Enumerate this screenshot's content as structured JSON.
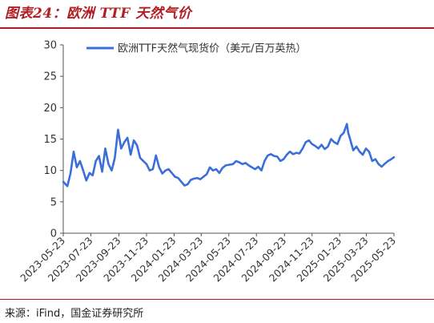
{
  "header": {
    "title": "图表24：欧洲 TTF 天然气价"
  },
  "footer": {
    "source": "来源：iFind，国金证券研究所"
  },
  "chart_data": {
    "type": "line",
    "title": "图表24：欧洲 TTF 天然气价",
    "xlabel": "",
    "ylabel": "",
    "ylim": [
      0,
      30
    ],
    "yticks": [
      0,
      5,
      10,
      15,
      20,
      25,
      30
    ],
    "xticks": [
      "2023-05-23",
      "2023-07-23",
      "2023-09-23",
      "2023-11-23",
      "2024-01-23",
      "2024-03-23",
      "2024-05-23",
      "2024-07-23",
      "2024-09-23",
      "2024-11-23",
      "2025-01-23",
      "2025-03-23",
      "2025-05-23"
    ],
    "grid": false,
    "legend": "top-right",
    "colors": {
      "series": "#3a6fd8"
    },
    "series": [
      {
        "name": "欧洲TTF天然气现货价（美元/百万英热）",
        "x": [
          "2023-05-23",
          "2023-06-01",
          "2023-06-08",
          "2023-06-15",
          "2023-06-22",
          "2023-06-29",
          "2023-07-06",
          "2023-07-13",
          "2023-07-20",
          "2023-07-27",
          "2023-08-03",
          "2023-08-10",
          "2023-08-17",
          "2023-08-24",
          "2023-08-31",
          "2023-09-07",
          "2023-09-14",
          "2023-09-21",
          "2023-09-28",
          "2023-10-05",
          "2023-10-12",
          "2023-10-19",
          "2023-10-26",
          "2023-11-02",
          "2023-11-09",
          "2023-11-16",
          "2023-11-23",
          "2023-11-30",
          "2023-12-07",
          "2023-12-14",
          "2023-12-21",
          "2023-12-28",
          "2024-01-04",
          "2024-01-11",
          "2024-01-18",
          "2024-01-25",
          "2024-02-01",
          "2024-02-08",
          "2024-02-15",
          "2024-02-22",
          "2024-02-29",
          "2024-03-07",
          "2024-03-14",
          "2024-03-21",
          "2024-03-28",
          "2024-04-04",
          "2024-04-11",
          "2024-04-18",
          "2024-04-25",
          "2024-05-02",
          "2024-05-09",
          "2024-05-16",
          "2024-05-23",
          "2024-06-01",
          "2024-06-08",
          "2024-06-15",
          "2024-06-22",
          "2024-06-29",
          "2024-07-06",
          "2024-07-13",
          "2024-07-20",
          "2024-07-27",
          "2024-08-03",
          "2024-08-10",
          "2024-08-17",
          "2024-08-24",
          "2024-08-31",
          "2024-09-07",
          "2024-09-14",
          "2024-09-21",
          "2024-09-28",
          "2024-10-05",
          "2024-10-12",
          "2024-10-19",
          "2024-10-26",
          "2024-11-02",
          "2024-11-09",
          "2024-11-16",
          "2024-11-23",
          "2024-11-30",
          "2024-12-07",
          "2024-12-14",
          "2024-12-21",
          "2024-12-28",
          "2025-01-04",
          "2025-01-11",
          "2025-01-18",
          "2025-01-25",
          "2025-02-01",
          "2025-02-08",
          "2025-02-11",
          "2025-02-15",
          "2025-02-22",
          "2025-03-01",
          "2025-03-08",
          "2025-03-15",
          "2025-03-22",
          "2025-03-29",
          "2025-04-05",
          "2025-04-12",
          "2025-04-19",
          "2025-04-26",
          "2025-05-03",
          "2025-05-10",
          "2025-05-17",
          "2025-05-23"
        ],
        "values": [
          8.2,
          7.5,
          9.5,
          13.0,
          10.5,
          11.5,
          10.0,
          8.4,
          9.6,
          9.2,
          11.5,
          12.3,
          9.8,
          13.5,
          11.0,
          10.0,
          12.0,
          16.5,
          13.5,
          14.5,
          15.2,
          12.5,
          14.8,
          14.0,
          12.0,
          11.5,
          11.0,
          10.0,
          10.2,
          12.4,
          10.5,
          9.5,
          10.0,
          10.2,
          9.6,
          9.0,
          8.8,
          8.2,
          7.6,
          7.8,
          8.5,
          8.7,
          8.8,
          8.6,
          9.0,
          9.4,
          10.5,
          10.0,
          10.2,
          9.6,
          10.4,
          10.8,
          10.9,
          11.0,
          11.5,
          11.3,
          11.0,
          11.2,
          10.8,
          10.5,
          10.2,
          10.6,
          10.0,
          11.5,
          12.4,
          12.6,
          12.3,
          12.2,
          11.5,
          11.8,
          12.5,
          13.0,
          12.6,
          12.8,
          12.7,
          13.5,
          14.5,
          14.8,
          14.2,
          13.9,
          13.5,
          14.1,
          13.4,
          13.8,
          15.0,
          14.5,
          14.2,
          15.5,
          16.0,
          17.4,
          16.0,
          15.0,
          13.2,
          13.8,
          13.0,
          12.5,
          13.5,
          13.0,
          11.5,
          11.8,
          11.0,
          10.6,
          11.1,
          11.5,
          11.8,
          12.1
        ]
      }
    ]
  }
}
